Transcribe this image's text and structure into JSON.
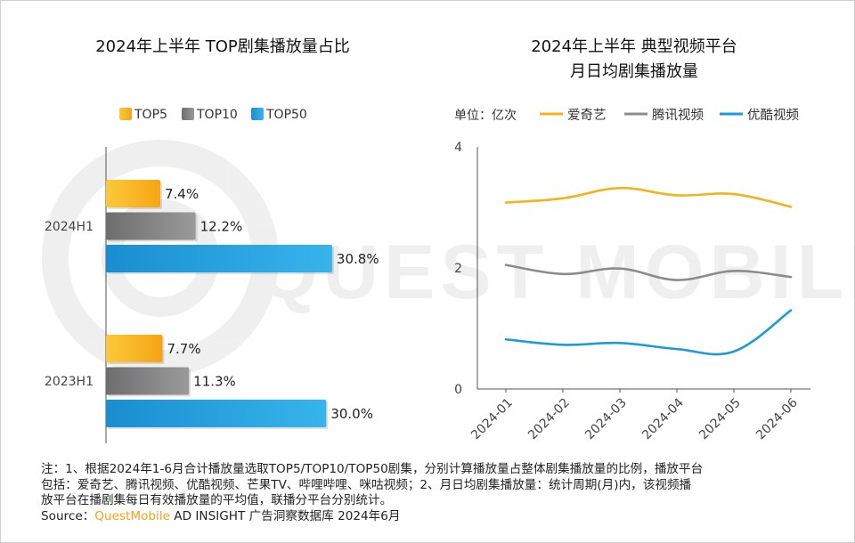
{
  "watermark": "QUEST MOBILE",
  "chart_data": [
    {
      "type": "bar",
      "orientation": "horizontal",
      "title": "2024年上半年 TOP剧集播放量占比",
      "categories": [
        "2024H1",
        "2023H1"
      ],
      "series": [
        {
          "name": "TOP5",
          "values": [
            7.4,
            7.7
          ],
          "labels": [
            "7.4%",
            "7.7%"
          ],
          "color": "#f7b21c"
        },
        {
          "name": "TOP10",
          "values": [
            12.2,
            11.3
          ],
          "labels": [
            "12.2%",
            "11.3%"
          ],
          "color": "#7d7d7d"
        },
        {
          "name": "TOP50",
          "values": [
            30.8,
            30.0
          ],
          "labels": [
            "30.8%",
            "30.0%"
          ],
          "color": "#1f9bd8"
        }
      ],
      "xlim": [
        0,
        45
      ],
      "legend_position": "top"
    },
    {
      "type": "line",
      "title_lines": [
        "2024年上半年 典型视频平台",
        "月日均剧集播放量"
      ],
      "unit_label": "单位：亿次",
      "x": [
        "2024-01",
        "2024-02",
        "2024-03",
        "2024-04",
        "2024-05",
        "2024-06"
      ],
      "yticks": [
        "0",
        "2",
        "4"
      ],
      "ylim": [
        0,
        4
      ],
      "series": [
        {
          "name": "爱奇艺",
          "values": [
            3.08,
            3.15,
            3.32,
            3.2,
            3.22,
            3.01
          ],
          "color": "#f5b21b"
        },
        {
          "name": "腾讯视频",
          "values": [
            2.05,
            1.9,
            1.99,
            1.8,
            1.95,
            1.85
          ],
          "color": "#8c8c8c"
        },
        {
          "name": "优酷视频",
          "values": [
            0.82,
            0.73,
            0.76,
            0.66,
            0.62,
            1.3
          ],
          "color": "#1e9ad9"
        }
      ],
      "legend_position": "top"
    }
  ],
  "notes": {
    "line1": "注：1、根据2024年1-6月合计播放量选取TOP5/TOP10/TOP50剧集，分别计算播放量占整体剧集播放量的比例，播放平台",
    "line2": "包括：爱奇艺、腾讯视频、优酷视频、芒果TV、哔哩哔哩、咪咕视频；2、月日均剧集播放量：统计周期(月)内，该视频播",
    "line3": "放平台在播剧集每日有效播放量的平均值，联播分平台分别统计。",
    "source_prefix": "Source：",
    "source_brand": "QuestMobile",
    "source_rest": " AD INSIGHT 广告洞察数据库 2024年6月"
  }
}
